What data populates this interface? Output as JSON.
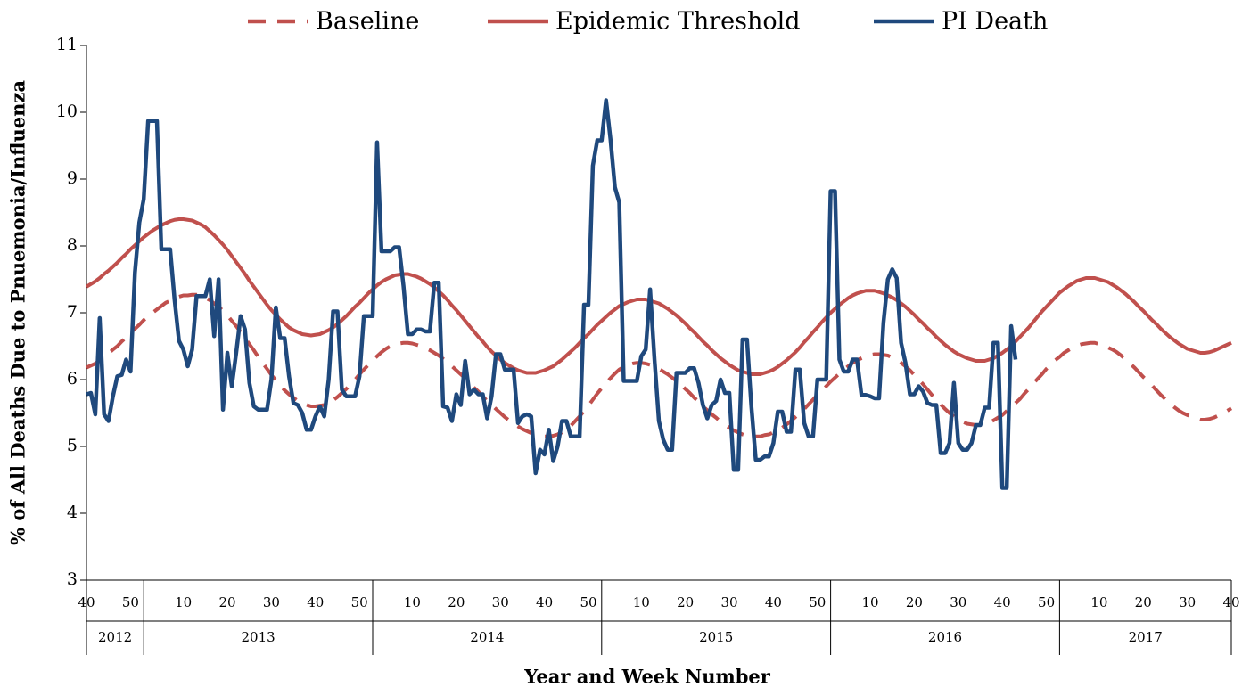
{
  "chart_data": {
    "type": "line",
    "y_label": "% of All Deaths Due to Pnuemonia/Influenza",
    "x_label": "Year and Week Number",
    "legend": "top",
    "grid": false,
    "ylim": [
      3,
      11
    ],
    "yticks": [
      3,
      4,
      5,
      6,
      7,
      8,
      9,
      10,
      11
    ],
    "x_groups": [
      {
        "label": "2012",
        "weeks": 13
      },
      {
        "label": "2013",
        "weeks": 52
      },
      {
        "label": "2014",
        "weeks": 52
      },
      {
        "label": "2015",
        "weeks": 52
      },
      {
        "label": "2016",
        "weeks": 52
      },
      {
        "label": "2017",
        "weeks": 40
      }
    ],
    "categories": [
      "40",
      null,
      null,
      null,
      null,
      null,
      null,
      null,
      null,
      null,
      "50",
      null,
      null,
      null,
      null,
      null,
      null,
      null,
      null,
      null,
      null,
      null,
      "10",
      null,
      null,
      null,
      null,
      null,
      null,
      null,
      null,
      null,
      "20",
      null,
      null,
      null,
      null,
      null,
      null,
      null,
      null,
      null,
      "30",
      null,
      null,
      null,
      null,
      null,
      null,
      null,
      null,
      null,
      "40",
      null,
      null,
      null,
      null,
      null,
      null,
      null,
      null,
      null,
      "50",
      null,
      null,
      null,
      null,
      null,
      null,
      null,
      null,
      null,
      null,
      null,
      "10",
      null,
      null,
      null,
      null,
      null,
      null,
      null,
      null,
      null,
      "20",
      null,
      null,
      null,
      null,
      null,
      null,
      null,
      null,
      null,
      "30",
      null,
      null,
      null,
      null,
      null,
      null,
      null,
      null,
      null,
      "40",
      null,
      null,
      null,
      null,
      null,
      null,
      null,
      null,
      null,
      "50",
      null,
      null,
      null,
      null,
      null,
      null,
      null,
      null,
      null,
      null,
      null,
      "10",
      null,
      null,
      null,
      null,
      null,
      null,
      null,
      null,
      null,
      "20",
      null,
      null,
      null,
      null,
      null,
      null,
      null,
      null,
      null,
      "30",
      null,
      null,
      null,
      null,
      null,
      null,
      null,
      null,
      null,
      "40",
      null,
      null,
      null,
      null,
      null,
      null,
      null,
      null,
      null,
      "50",
      null,
      null,
      null,
      null,
      null,
      null,
      null,
      null,
      null,
      null,
      null,
      "10",
      null,
      null,
      null,
      null,
      null,
      null,
      null,
      null,
      null,
      "20",
      null,
      null,
      null,
      null,
      null,
      null,
      null,
      null,
      null,
      "30",
      null,
      null,
      null,
      null,
      null,
      null,
      null,
      null,
      null,
      "40",
      null,
      null,
      null,
      null,
      null,
      null,
      null,
      null,
      null,
      "50",
      null,
      null,
      null,
      null,
      null,
      null,
      null,
      null,
      null,
      null,
      null,
      "10",
      null,
      null,
      null,
      null,
      null,
      null,
      null,
      null,
      null,
      "20",
      null,
      null,
      null,
      null,
      null,
      null,
      null,
      null,
      null,
      "30",
      null,
      null,
      null,
      null,
      null,
      null,
      null,
      null,
      null,
      "40"
    ],
    "series": [
      {
        "name": "Baseline",
        "color": "#c0504d",
        "line_style": "dashed",
        "values": [
          6.18,
          6.21,
          6.24,
          6.29,
          6.34,
          6.39,
          6.45,
          6.5,
          6.57,
          6.63,
          6.7,
          6.76,
          6.82,
          6.89,
          6.94,
          7.0,
          7.05,
          7.1,
          7.15,
          7.18,
          7.21,
          7.24,
          7.26,
          7.26,
          7.27,
          7.27,
          7.25,
          7.22,
          7.19,
          7.14,
          7.09,
          7.03,
          6.96,
          6.88,
          6.8,
          6.71,
          6.62,
          6.53,
          6.44,
          6.34,
          6.25,
          6.16,
          6.07,
          5.99,
          5.91,
          5.84,
          5.78,
          5.73,
          5.68,
          5.65,
          5.62,
          5.6,
          5.6,
          5.61,
          5.62,
          5.65,
          5.69,
          5.74,
          5.8,
          5.86,
          5.93,
          6.0,
          6.08,
          6.15,
          6.22,
          6.29,
          6.35,
          6.41,
          6.46,
          6.5,
          6.53,
          6.54,
          6.55,
          6.55,
          6.54,
          6.52,
          6.5,
          6.47,
          6.44,
          6.4,
          6.36,
          6.31,
          6.26,
          6.2,
          6.14,
          6.08,
          6.02,
          5.95,
          5.88,
          5.82,
          5.75,
          5.68,
          5.62,
          5.56,
          5.5,
          5.44,
          5.39,
          5.34,
          5.3,
          5.26,
          5.23,
          5.2,
          5.18,
          5.16,
          5.15,
          5.15,
          5.16,
          5.18,
          5.21,
          5.25,
          5.31,
          5.38,
          5.45,
          5.53,
          5.61,
          5.7,
          5.79,
          5.87,
          5.95,
          6.02,
          6.09,
          6.15,
          6.19,
          6.22,
          6.24,
          6.25,
          6.25,
          6.24,
          6.22,
          6.19,
          6.16,
          6.12,
          6.08,
          6.03,
          5.98,
          5.92,
          5.86,
          5.8,
          5.73,
          5.67,
          5.6,
          5.54,
          5.48,
          5.43,
          5.37,
          5.32,
          5.28,
          5.24,
          5.21,
          5.18,
          5.16,
          5.15,
          5.15,
          5.15,
          5.17,
          5.18,
          5.21,
          5.24,
          5.28,
          5.33,
          5.38,
          5.44,
          5.5,
          5.56,
          5.63,
          5.7,
          5.77,
          5.83,
          5.9,
          5.97,
          6.03,
          6.09,
          6.15,
          6.2,
          6.25,
          6.29,
          6.32,
          6.35,
          6.37,
          6.38,
          6.38,
          6.37,
          6.36,
          6.33,
          6.3,
          6.25,
          6.2,
          6.14,
          6.07,
          6.0,
          5.93,
          5.85,
          5.77,
          5.7,
          5.63,
          5.56,
          5.5,
          5.45,
          5.4,
          5.37,
          5.34,
          5.33,
          5.32,
          5.32,
          5.34,
          5.36,
          5.39,
          5.43,
          5.47,
          5.53,
          5.58,
          5.65,
          5.71,
          5.79,
          5.86,
          5.94,
          6.01,
          6.08,
          6.16,
          6.22,
          6.29,
          6.34,
          6.4,
          6.44,
          6.48,
          6.51,
          6.53,
          6.54,
          6.55,
          6.55,
          6.53,
          6.51,
          6.48,
          6.45,
          6.41,
          6.36,
          6.3,
          6.24,
          6.18,
          6.11,
          6.04,
          5.98,
          5.91,
          5.84,
          5.77,
          5.71,
          5.65,
          5.59,
          5.54,
          5.5,
          5.47,
          5.44,
          5.42,
          5.4,
          5.4,
          5.41,
          5.43,
          5.46,
          5.49,
          5.53,
          5.57
        ]
      },
      {
        "name": "Epidemic Threshold",
        "color": "#c0504d",
        "line_style": "solid",
        "values": [
          7.39,
          7.43,
          7.47,
          7.52,
          7.58,
          7.63,
          7.69,
          7.75,
          7.82,
          7.88,
          7.95,
          8.01,
          8.07,
          8.13,
          8.18,
          8.23,
          8.27,
          8.31,
          8.34,
          8.37,
          8.39,
          8.4,
          8.4,
          8.39,
          8.38,
          8.35,
          8.32,
          8.28,
          8.22,
          8.16,
          8.09,
          8.02,
          7.94,
          7.85,
          7.76,
          7.67,
          7.58,
          7.48,
          7.39,
          7.3,
          7.21,
          7.12,
          7.04,
          6.97,
          6.9,
          6.84,
          6.78,
          6.74,
          6.71,
          6.68,
          6.67,
          6.66,
          6.67,
          6.68,
          6.71,
          6.74,
          6.78,
          6.83,
          6.89,
          6.95,
          7.02,
          7.09,
          7.15,
          7.22,
          7.29,
          7.35,
          7.41,
          7.46,
          7.5,
          7.53,
          7.56,
          7.57,
          7.58,
          7.58,
          7.56,
          7.54,
          7.51,
          7.47,
          7.43,
          7.38,
          7.32,
          7.26,
          7.19,
          7.11,
          7.04,
          6.96,
          6.88,
          6.8,
          6.72,
          6.64,
          6.57,
          6.49,
          6.42,
          6.36,
          6.3,
          6.25,
          6.21,
          6.17,
          6.14,
          6.12,
          6.1,
          6.1,
          6.1,
          6.12,
          6.14,
          6.17,
          6.2,
          6.25,
          6.3,
          6.36,
          6.42,
          6.48,
          6.55,
          6.62,
          6.68,
          6.75,
          6.82,
          6.88,
          6.94,
          7.0,
          7.05,
          7.1,
          7.13,
          7.16,
          7.18,
          7.2,
          7.2,
          7.2,
          7.18,
          7.16,
          7.14,
          7.1,
          7.06,
          7.01,
          6.96,
          6.9,
          6.84,
          6.77,
          6.71,
          6.64,
          6.57,
          6.51,
          6.44,
          6.38,
          6.32,
          6.27,
          6.22,
          6.18,
          6.14,
          6.12,
          6.1,
          6.08,
          6.08,
          6.08,
          6.1,
          6.12,
          6.15,
          6.19,
          6.24,
          6.29,
          6.35,
          6.41,
          6.48,
          6.56,
          6.63,
          6.71,
          6.78,
          6.86,
          6.93,
          7.0,
          7.06,
          7.12,
          7.17,
          7.22,
          7.26,
          7.29,
          7.31,
          7.33,
          7.33,
          7.33,
          7.31,
          7.29,
          7.26,
          7.23,
          7.19,
          7.14,
          7.09,
          7.03,
          6.97,
          6.9,
          6.84,
          6.77,
          6.71,
          6.64,
          6.58,
          6.52,
          6.47,
          6.42,
          6.38,
          6.35,
          6.32,
          6.3,
          6.28,
          6.28,
          6.28,
          6.3,
          6.32,
          6.36,
          6.4,
          6.45,
          6.5,
          6.57,
          6.64,
          6.71,
          6.78,
          6.86,
          6.94,
          7.02,
          7.09,
          7.16,
          7.23,
          7.3,
          7.35,
          7.4,
          7.44,
          7.48,
          7.5,
          7.52,
          7.52,
          7.52,
          7.5,
          7.48,
          7.46,
          7.42,
          7.38,
          7.33,
          7.28,
          7.22,
          7.16,
          7.09,
          7.03,
          6.96,
          6.89,
          6.83,
          6.76,
          6.7,
          6.64,
          6.59,
          6.54,
          6.5,
          6.46,
          6.44,
          6.42,
          6.4,
          6.4,
          6.41,
          6.43,
          6.46,
          6.49,
          6.52,
          6.55
        ]
      },
      {
        "name": "PI Death",
        "color": "#1f497d",
        "line_style": "solid",
        "values": [
          5.78,
          5.8,
          5.48,
          6.92,
          5.48,
          5.38,
          5.75,
          6.05,
          6.07,
          6.3,
          6.12,
          7.6,
          8.35,
          8.7,
          9.87,
          9.87,
          9.87,
          7.95,
          7.95,
          7.95,
          7.2,
          6.58,
          6.45,
          6.2,
          6.45,
          7.25,
          7.25,
          7.25,
          7.5,
          6.65,
          7.5,
          5.55,
          6.4,
          5.9,
          6.4,
          6.95,
          6.75,
          5.95,
          5.6,
          5.55,
          5.55,
          5.55,
          6.0,
          7.08,
          6.62,
          6.62,
          6.05,
          5.65,
          5.62,
          5.5,
          5.25,
          5.25,
          5.45,
          5.6,
          5.45,
          6.0,
          7.02,
          7.02,
          5.85,
          5.75,
          5.75,
          5.75,
          6.05,
          6.95,
          6.95,
          6.95,
          9.55,
          7.92,
          7.92,
          7.92,
          7.98,
          7.98,
          7.4,
          6.68,
          6.68,
          6.75,
          6.75,
          6.72,
          6.72,
          7.45,
          7.45,
          5.6,
          5.58,
          5.38,
          5.78,
          5.62,
          6.28,
          5.78,
          5.85,
          5.78,
          5.78,
          5.42,
          5.75,
          6.38,
          6.38,
          6.15,
          6.15,
          6.15,
          5.35,
          5.45,
          5.48,
          5.45,
          4.6,
          4.95,
          4.88,
          5.25,
          4.78,
          5.0,
          5.38,
          5.38,
          5.15,
          5.15,
          5.15,
          7.12,
          7.12,
          9.2,
          9.58,
          9.58,
          10.18,
          9.6,
          8.88,
          8.65,
          5.98,
          5.98,
          5.98,
          5.98,
          6.35,
          6.45,
          7.35,
          6.3,
          5.38,
          5.1,
          4.95,
          4.95,
          6.1,
          6.1,
          6.1,
          6.17,
          6.17,
          5.95,
          5.62,
          5.42,
          5.62,
          5.68,
          6.0,
          5.8,
          5.8,
          4.65,
          4.65,
          6.6,
          6.6,
          5.6,
          4.8,
          4.8,
          4.85,
          4.85,
          5.05,
          5.52,
          5.52,
          5.22,
          5.22,
          6.15,
          6.15,
          5.35,
          5.15,
          5.15,
          6.0,
          6.0,
          6.0,
          8.82,
          8.82,
          6.3,
          6.12,
          6.12,
          6.3,
          6.3,
          5.77,
          5.77,
          5.75,
          5.72,
          5.72,
          6.85,
          7.5,
          7.65,
          7.52,
          6.55,
          6.25,
          5.78,
          5.78,
          5.9,
          5.82,
          5.65,
          5.62,
          5.62,
          4.9,
          4.9,
          5.05,
          5.95,
          5.05,
          4.95,
          4.95,
          5.05,
          5.32,
          5.32,
          5.58,
          5.58,
          6.55,
          6.55,
          4.38,
          4.38,
          6.8,
          6.3,
          null,
          null,
          null,
          null,
          null,
          null,
          null,
          null,
          null,
          null,
          null,
          null,
          null,
          null,
          null,
          null,
          null,
          null,
          null,
          null,
          null,
          null,
          null,
          null,
          null,
          null,
          null,
          null,
          null,
          null,
          null,
          null,
          null,
          null,
          null,
          null,
          null,
          null,
          null,
          null,
          null,
          null,
          null,
          null,
          null,
          null,
          null,
          null,
          null
        ]
      }
    ]
  }
}
